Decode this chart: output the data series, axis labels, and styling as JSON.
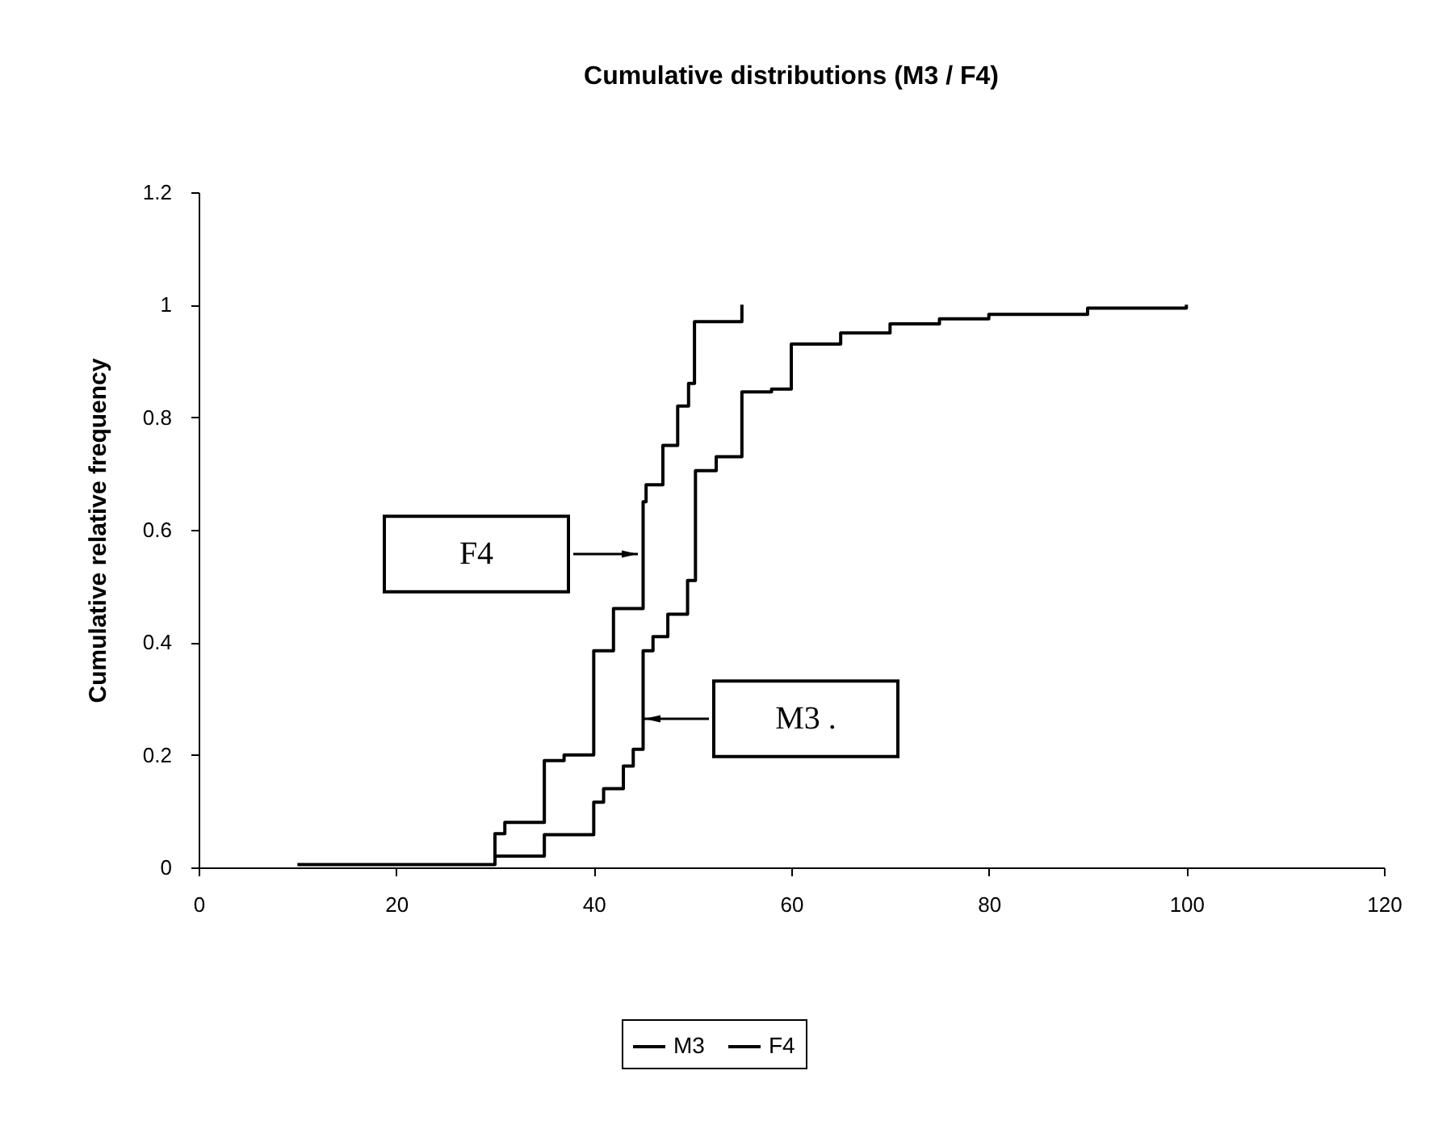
{
  "chart_data": {
    "type": "step",
    "title": "Cumulative distributions (M3 / F4)",
    "ylabel": "Cumulative relative frequency",
    "xlim": [
      0,
      120
    ],
    "xticks": [
      0,
      20,
      40,
      60,
      80,
      100,
      120
    ],
    "ylim": [
      0,
      1.2
    ],
    "yticks": [
      0,
      0.2,
      0.4,
      0.6,
      0.8,
      1,
      1.2
    ],
    "legend": "bottom",
    "line_style": "solid",
    "series": [
      {
        "name": "M3",
        "color": "#000000",
        "x": [
          30,
          35,
          40,
          41,
          43,
          44,
          45,
          46,
          47.5,
          49.5,
          50.3,
          52.4,
          55,
          58,
          60,
          65,
          70,
          75,
          80,
          90,
          100
        ],
        "values": [
          0.02,
          0.058,
          0.116,
          0.14,
          0.18,
          0.21,
          0.385,
          0.41,
          0.45,
          0.51,
          0.705,
          0.73,
          0.845,
          0.85,
          0.93,
          0.95,
          0.966,
          0.975,
          0.983,
          0.994,
          1
        ]
      },
      {
        "name": "F4",
        "color": "#000000",
        "x": [
          10,
          30,
          31,
          35,
          37,
          40,
          42,
          45,
          45.3,
          47,
          48.5,
          49.6,
          50.2,
          55
        ],
        "values": [
          0.005,
          0.06,
          0.08,
          0.19,
          0.2,
          0.385,
          0.46,
          0.65,
          0.68,
          0.75,
          0.82,
          0.86,
          0.97,
          1
        ]
      }
    ],
    "annotations": [
      "F4",
      "M3 ."
    ]
  }
}
